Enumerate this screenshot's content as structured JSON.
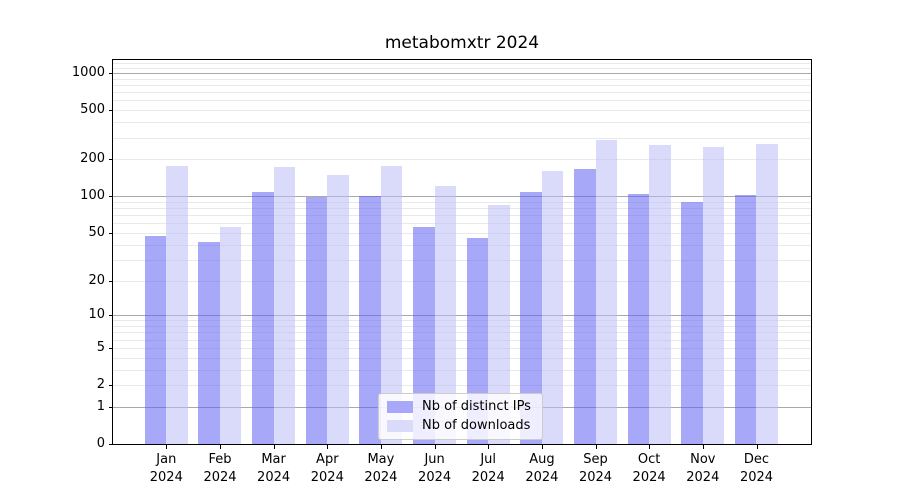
{
  "chart_data": {
    "type": "bar",
    "title": "metabomxtr 2024",
    "categories": [
      {
        "month": "Jan",
        "year": "2024"
      },
      {
        "month": "Feb",
        "year": "2024"
      },
      {
        "month": "Mar",
        "year": "2024"
      },
      {
        "month": "Apr",
        "year": "2024"
      },
      {
        "month": "May",
        "year": "2024"
      },
      {
        "month": "Jun",
        "year": "2024"
      },
      {
        "month": "Jul",
        "year": "2024"
      },
      {
        "month": "Aug",
        "year": "2024"
      },
      {
        "month": "Sep",
        "year": "2024"
      },
      {
        "month": "Oct",
        "year": "2024"
      },
      {
        "month": "Nov",
        "year": "2024"
      },
      {
        "month": "Dec",
        "year": "2024"
      }
    ],
    "series": [
      {
        "name": "Nb of distinct IPs",
        "color": "#a8a8f8",
        "values": [
          47,
          42,
          108,
          98,
          100,
          56,
          45,
          108,
          168,
          105,
          90,
          103
        ]
      },
      {
        "name": "Nb of downloads",
        "color": "#dadafa",
        "values": [
          177,
          56,
          173,
          150,
          177,
          120,
          84,
          161,
          287,
          262,
          252,
          266
        ]
      }
    ],
    "y_ticks": [
      0,
      1,
      2,
      5,
      10,
      20,
      50,
      100,
      200,
      500,
      1000
    ],
    "ylim": [
      0,
      1272
    ],
    "scale": "log10(value+1)",
    "xlabel": "",
    "ylabel": "",
    "grid": true,
    "legend_position": "lower center"
  }
}
